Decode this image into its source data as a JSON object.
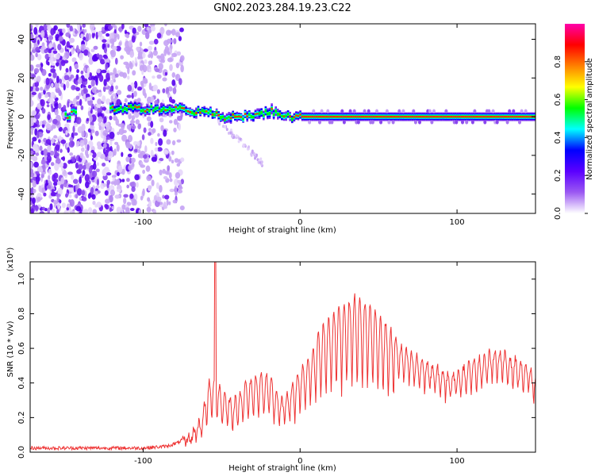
{
  "title": "GN02.2023.284.19.23.C22",
  "chart_data": [
    {
      "type": "heatmap",
      "xlabel": "Height of straight line (km)",
      "ylabel": "Frequency (Hz)",
      "xlim": [
        -172,
        150
      ],
      "ylim": [
        -50,
        48
      ],
      "x_ticks": [
        -100,
        0,
        100
      ],
      "y_ticks": [
        -40,
        -20,
        0,
        20,
        40
      ],
      "colorbar": {
        "label": "Normalized spectral amplitude",
        "range": [
          0,
          1
        ],
        "ticks": [
          "0.0",
          "0.2",
          "0.4",
          "0.6",
          "0.8"
        ],
        "colors": [
          "#ffffff",
          "#9b59f2",
          "#5b00ff",
          "#0000ff",
          "#00ffff",
          "#00ff00",
          "#ffff00",
          "#ff8000",
          "#ff0000",
          "#ff00aa"
        ]
      },
      "ridge": [
        {
          "x": -147,
          "y": 3
        },
        {
          "x": -120,
          "y": 4
        },
        {
          "x": -100,
          "y": 4
        },
        {
          "x": -80,
          "y": 4
        },
        {
          "x": -70,
          "y": 3
        },
        {
          "x": -60,
          "y": 2
        },
        {
          "x": -50,
          "y": 0
        },
        {
          "x": -40,
          "y": 0
        },
        {
          "x": -30,
          "y": 0
        },
        {
          "x": -20,
          "y": 3
        },
        {
          "x": -10,
          "y": 0
        },
        {
          "x": 0,
          "y": 0
        },
        {
          "x": 50,
          "y": 0
        },
        {
          "x": 100,
          "y": 0
        },
        {
          "x": 150,
          "y": 0
        }
      ],
      "noise_region": [
        -172,
        -75
      ]
    },
    {
      "type": "line",
      "xlabel": "Height of straight line (km)",
      "ylabel": "SNR (10 * v/v)",
      "y_multiplier": "(x10⁴)",
      "xlim": [
        -172,
        150
      ],
      "ylim": [
        0,
        1.1
      ],
      "x_ticks": [
        -100,
        0,
        100
      ],
      "y_ticks": [
        "0.0",
        "0.2",
        "0.4",
        "0.6",
        "0.8",
        "1.0"
      ],
      "color": "#ee3333",
      "envelope": [
        {
          "x": -172,
          "y": 0.02
        },
        {
          "x": -100,
          "y": 0.02
        },
        {
          "x": -85,
          "y": 0.03
        },
        {
          "x": -78,
          "y": 0.05
        },
        {
          "x": -70,
          "y": 0.1
        },
        {
          "x": -63,
          "y": 0.2
        },
        {
          "x": -58,
          "y": 0.4
        },
        {
          "x": -54,
          "y": 0.45
        },
        {
          "x": -50,
          "y": 0.35
        },
        {
          "x": -42,
          "y": 0.3
        },
        {
          "x": -35,
          "y": 0.4
        },
        {
          "x": -28,
          "y": 0.45
        },
        {
          "x": -20,
          "y": 0.45
        },
        {
          "x": -12,
          "y": 0.3
        },
        {
          "x": -5,
          "y": 0.4
        },
        {
          "x": 5,
          "y": 0.55
        },
        {
          "x": 15,
          "y": 0.75
        },
        {
          "x": 25,
          "y": 0.85
        },
        {
          "x": 35,
          "y": 0.9
        },
        {
          "x": 45,
          "y": 0.85
        },
        {
          "x": 55,
          "y": 0.75
        },
        {
          "x": 65,
          "y": 0.6
        },
        {
          "x": 75,
          "y": 0.55
        },
        {
          "x": 85,
          "y": 0.5
        },
        {
          "x": 95,
          "y": 0.45
        },
        {
          "x": 105,
          "y": 0.5
        },
        {
          "x": 115,
          "y": 0.55
        },
        {
          "x": 125,
          "y": 0.6
        },
        {
          "x": 135,
          "y": 0.55
        },
        {
          "x": 145,
          "y": 0.5
        },
        {
          "x": 150,
          "y": 0.42
        }
      ],
      "spike": {
        "x": -54,
        "y": 1.1
      }
    }
  ]
}
